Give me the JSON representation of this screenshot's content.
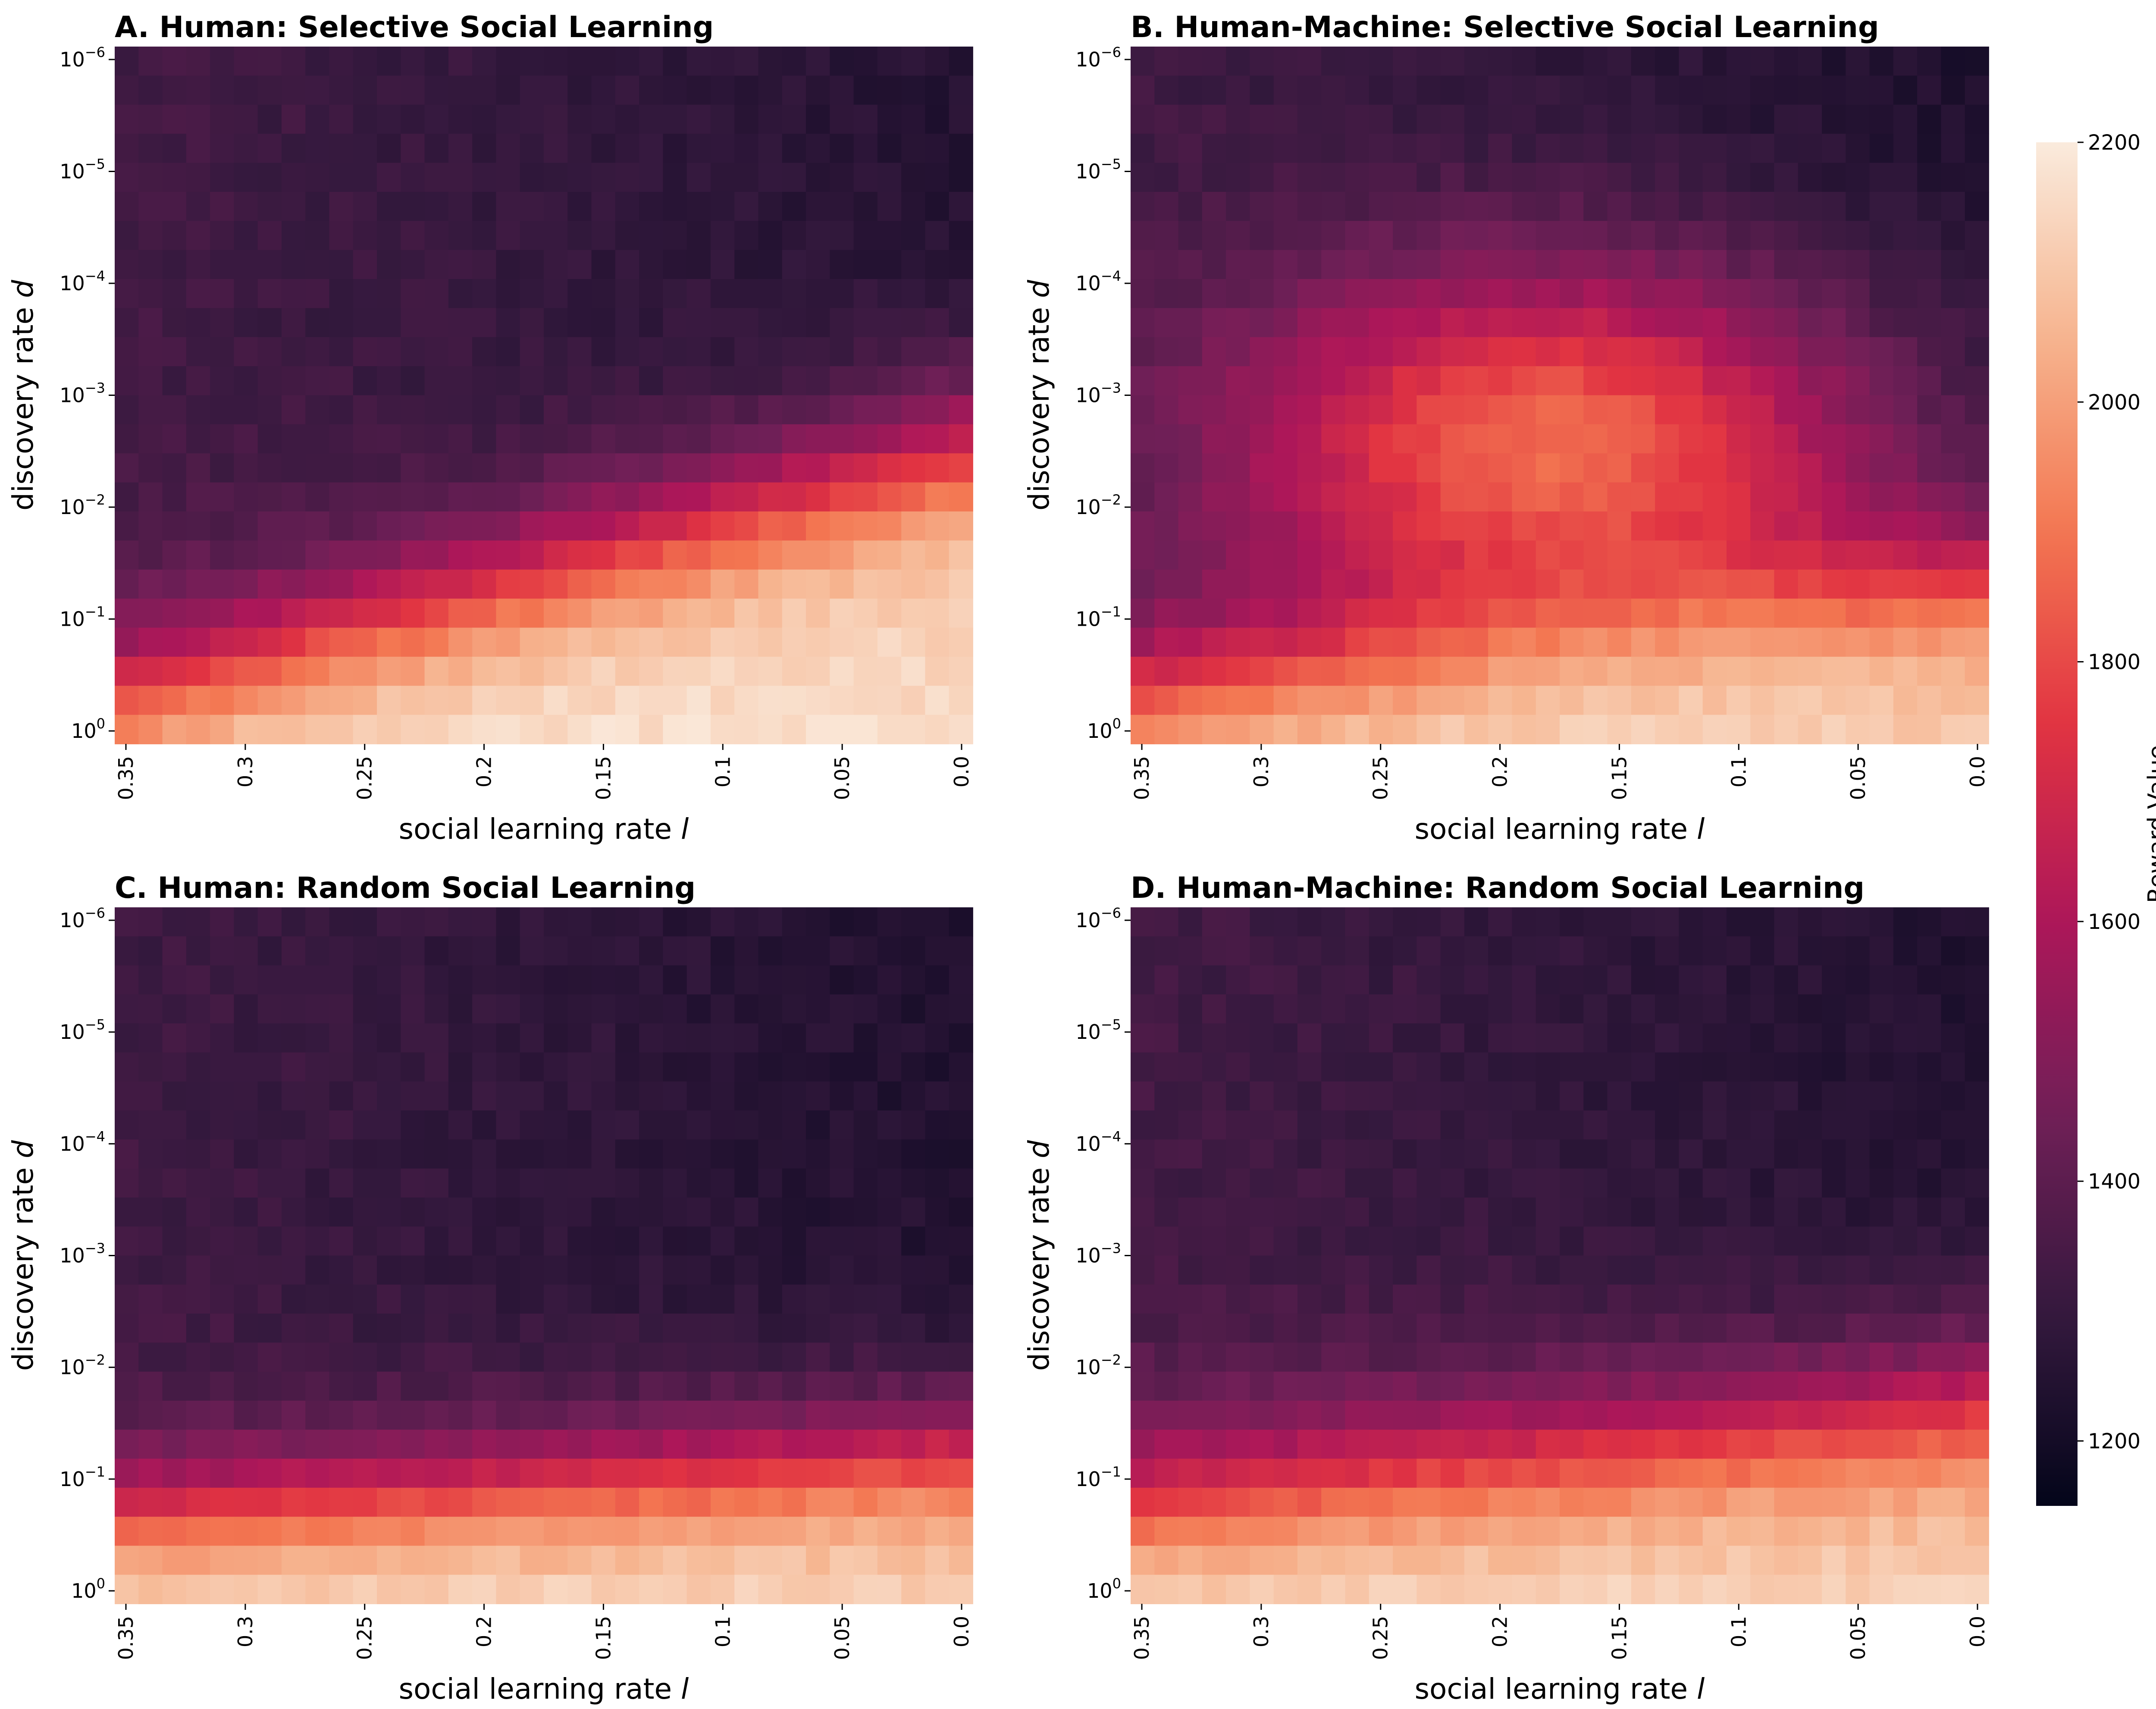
{
  "chart_data": {
    "type": "heatmap",
    "shared": {
      "xlabel_text": "social learning rate ",
      "xlabel_var": "l",
      "ylabel_text": "discovery rate ",
      "ylabel_var": "d",
      "x_ticks": [
        "0.35",
        "0.3",
        "0.25",
        "0.2",
        "0.15",
        "0.1",
        "0.05",
        "0.0"
      ],
      "x_range": [
        0.35,
        0.0
      ],
      "y_ticks": [
        {
          "base": "10",
          "exp": "−6"
        },
        {
          "base": "10",
          "exp": "−5"
        },
        {
          "base": "10",
          "exp": "−4"
        },
        {
          "base": "10",
          "exp": "−3"
        },
        {
          "base": "10",
          "exp": "−2"
        },
        {
          "base": "10",
          "exp": "−1"
        },
        {
          "base": "10",
          "exp": "0"
        }
      ],
      "y_range_log10": [
        -6,
        0
      ],
      "y_scale": "log",
      "grid": false
    },
    "colorbar": {
      "label": "Reward Value",
      "ticks": [
        1200,
        1400,
        1600,
        1800,
        2000,
        2200
      ],
      "range": [
        1150,
        2200
      ],
      "colormap": "rocket",
      "colors": [
        "#03051A",
        "#35193E",
        "#701F57",
        "#AD1759",
        "#E13342",
        "#F37651",
        "#F6B48F",
        "#FAEBDD"
      ],
      "placement": "right"
    },
    "panels": [
      {
        "title": "A. Human: Selective Social Learning",
        "grid": [
          36,
          24
        ],
        "surface": {
          "base": 1310,
          "edge_gain": 900,
          "edge_center": -1.5,
          "edge_slope": 2.2,
          "edge_width": 0.42,
          "high_center": 0.11,
          "high_slope": 1.95,
          "high_drop": 140,
          "dark_corner": 60
        }
      },
      {
        "title": "B. Human-Machine: Selective Social Learning",
        "grid": [
          36,
          24
        ],
        "surface": {
          "base": 1300,
          "edge_gain": 880,
          "edge_center": -0.95,
          "edge_slope": 1.0,
          "edge_width": 0.38,
          "high_center": 0.11,
          "high_slope": 1.95,
          "high_drop": 120,
          "dark_corner": 70,
          "blob_gain": 580,
          "blob_center_x": 0.5,
          "blob_center_y": -2.6,
          "blob_width_x": 0.38,
          "blob_width_y": 1.55
        }
      },
      {
        "title": "C. Human: Random Social Learning",
        "grid": [
          36,
          24
        ],
        "surface": {
          "base": 1300,
          "edge_gain": 900,
          "edge_center": -1.05,
          "edge_slope": 0.6,
          "edge_width": 0.36,
          "high_center": 0.11,
          "high_slope": 1.95,
          "high_drop": 140,
          "dark_corner": 60
        }
      },
      {
        "title": "D. Human-Machine: Random Social Learning",
        "grid": [
          36,
          24
        ],
        "surface": {
          "base": 1310,
          "edge_gain": 900,
          "edge_center": -1.3,
          "edge_slope": 0.9,
          "edge_width": 0.45,
          "high_center": 0.11,
          "high_slope": 1.95,
          "high_drop": 150,
          "dark_corner": 70
        }
      }
    ]
  }
}
